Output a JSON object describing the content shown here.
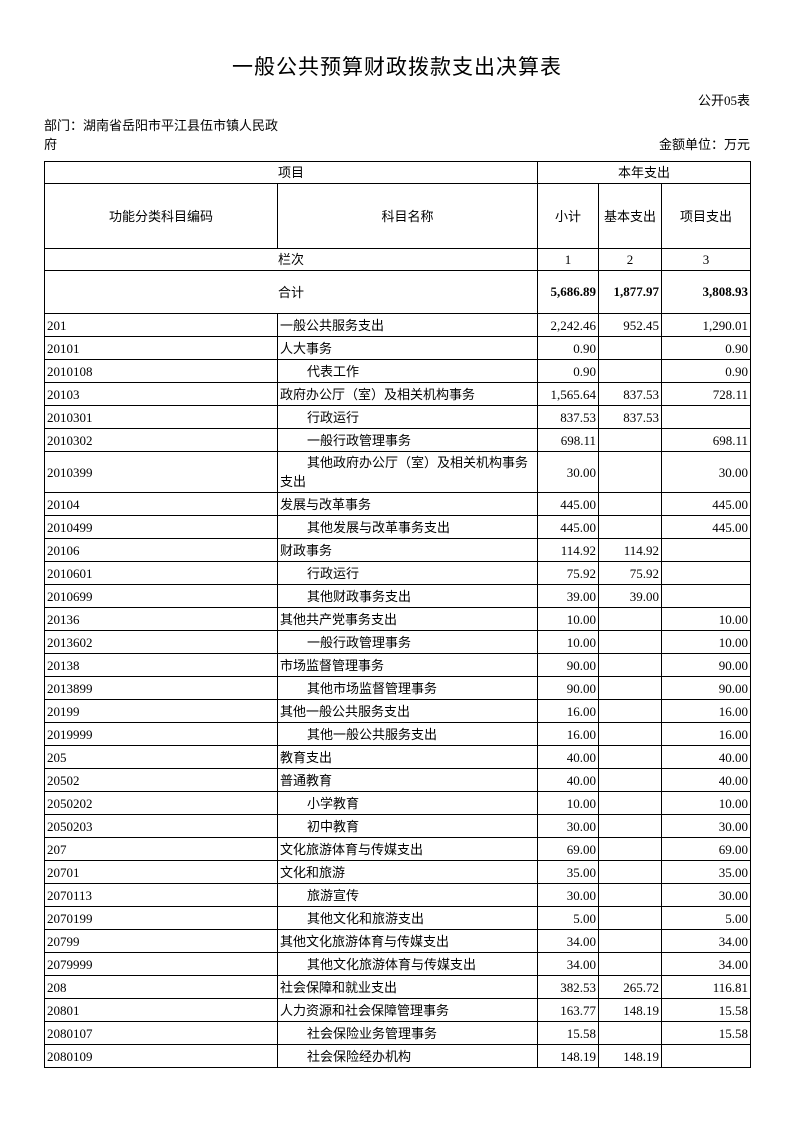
{
  "page": {
    "title": "一般公共预算财政拨款支出决算表",
    "sheet_label": "公开05表",
    "department": "部门：湖南省岳阳市平江县伍市镇人民政府",
    "unit": "金额单位：万元"
  },
  "table": {
    "header": {
      "item_group": "项目",
      "year_group": "本年支出",
      "code": "功能分类科目编码",
      "name": "科目名称",
      "subtotal": "小计",
      "basic": "基本支出",
      "project": "项目支出",
      "index_label": "栏次",
      "col_numbers": [
        "1",
        "2",
        "3"
      ]
    },
    "total": {
      "label": "合计",
      "subtotal": "5,686.89",
      "basic": "1,877.97",
      "project": "3,808.93"
    },
    "rows": [
      {
        "code": "201",
        "name": "一般公共服务支出",
        "subtotal": "2,242.46",
        "basic": "952.45",
        "project": "1,290.01"
      },
      {
        "code": "20101",
        "name": "人大事务",
        "subtotal": "0.90",
        "basic": "",
        "project": "0.90"
      },
      {
        "code": "2010108",
        "name": "代表工作",
        "subtotal": "0.90",
        "basic": "",
        "project": "0.90"
      },
      {
        "code": "20103",
        "name": "政府办公厅（室）及相关机构事务",
        "subtotal": "1,565.64",
        "basic": "837.53",
        "project": "728.11"
      },
      {
        "code": "2010301",
        "name": "行政运行",
        "subtotal": "837.53",
        "basic": "837.53",
        "project": ""
      },
      {
        "code": "2010302",
        "name": "一般行政管理事务",
        "subtotal": "698.11",
        "basic": "",
        "project": "698.11"
      },
      {
        "code": "2010399",
        "name": "其他政府办公厅（室）及相关机构事务支出",
        "subtotal": "30.00",
        "basic": "",
        "project": "30.00"
      },
      {
        "code": "20104",
        "name": "发展与改革事务",
        "subtotal": "445.00",
        "basic": "",
        "project": "445.00"
      },
      {
        "code": "2010499",
        "name": "其他发展与改革事务支出",
        "subtotal": "445.00",
        "basic": "",
        "project": "445.00"
      },
      {
        "code": "20106",
        "name": "财政事务",
        "subtotal": "114.92",
        "basic": "114.92",
        "project": ""
      },
      {
        "code": "2010601",
        "name": "行政运行",
        "subtotal": "75.92",
        "basic": "75.92",
        "project": ""
      },
      {
        "code": "2010699",
        "name": "其他财政事务支出",
        "subtotal": "39.00",
        "basic": "39.00",
        "project": ""
      },
      {
        "code": "20136",
        "name": "其他共产党事务支出",
        "subtotal": "10.00",
        "basic": "",
        "project": "10.00"
      },
      {
        "code": "2013602",
        "name": "一般行政管理事务",
        "subtotal": "10.00",
        "basic": "",
        "project": "10.00"
      },
      {
        "code": "20138",
        "name": "市场监督管理事务",
        "subtotal": "90.00",
        "basic": "",
        "project": "90.00"
      },
      {
        "code": "2013899",
        "name": "其他市场监督管理事务",
        "subtotal": "90.00",
        "basic": "",
        "project": "90.00"
      },
      {
        "code": "20199",
        "name": "其他一般公共服务支出",
        "subtotal": "16.00",
        "basic": "",
        "project": "16.00"
      },
      {
        "code": "2019999",
        "name": "其他一般公共服务支出",
        "subtotal": "16.00",
        "basic": "",
        "project": "16.00"
      },
      {
        "code": "205",
        "name": "教育支出",
        "subtotal": "40.00",
        "basic": "",
        "project": "40.00"
      },
      {
        "code": "20502",
        "name": "普通教育",
        "subtotal": "40.00",
        "basic": "",
        "project": "40.00"
      },
      {
        "code": "2050202",
        "name": "小学教育",
        "subtotal": "10.00",
        "basic": "",
        "project": "10.00"
      },
      {
        "code": "2050203",
        "name": "初中教育",
        "subtotal": "30.00",
        "basic": "",
        "project": "30.00"
      },
      {
        "code": "207",
        "name": "文化旅游体育与传媒支出",
        "subtotal": "69.00",
        "basic": "",
        "project": "69.00"
      },
      {
        "code": "20701",
        "name": "文化和旅游",
        "subtotal": "35.00",
        "basic": "",
        "project": "35.00"
      },
      {
        "code": "2070113",
        "name": "旅游宣传",
        "subtotal": "30.00",
        "basic": "",
        "project": "30.00"
      },
      {
        "code": "2070199",
        "name": "其他文化和旅游支出",
        "subtotal": "5.00",
        "basic": "",
        "project": "5.00"
      },
      {
        "code": "20799",
        "name": "其他文化旅游体育与传媒支出",
        "subtotal": "34.00",
        "basic": "",
        "project": "34.00"
      },
      {
        "code": "2079999",
        "name": "其他文化旅游体育与传媒支出",
        "subtotal": "34.00",
        "basic": "",
        "project": "34.00"
      },
      {
        "code": "208",
        "name": "社会保障和就业支出",
        "subtotal": "382.53",
        "basic": "265.72",
        "project": "116.81"
      },
      {
        "code": "20801",
        "name": "人力资源和社会保障管理事务",
        "subtotal": "163.77",
        "basic": "148.19",
        "project": "15.58"
      },
      {
        "code": "2080107",
        "name": "社会保险业务管理事务",
        "subtotal": "15.58",
        "basic": "",
        "project": "15.58"
      },
      {
        "code": "2080109",
        "name": "社会保险经办机构",
        "subtotal": "148.19",
        "basic": "148.19",
        "project": ""
      }
    ]
  }
}
